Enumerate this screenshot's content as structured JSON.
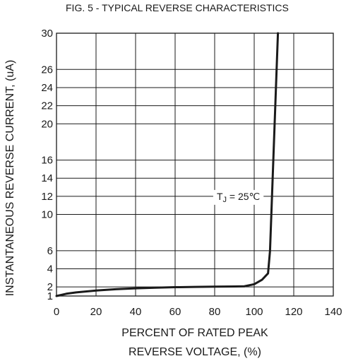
{
  "chart_data": {
    "type": "line",
    "title": "FIG. 5 - TYPICAL REVERSE CHARACTERISTICS",
    "xlabel_line1": "PERCENT OF RATED PEAK",
    "xlabel_line2": "REVERSE VOLTAGE, (%)",
    "ylabel": "INSTANTANEOUS REVERSE CURRENT, (uA)",
    "xlim": [
      0,
      140
    ],
    "ylim": [
      1,
      30
    ],
    "x_ticks": [
      "0",
      "20",
      "40",
      "60",
      "80",
      "100",
      "120",
      "140"
    ],
    "y_ticks": [
      1,
      2,
      4,
      6,
      10,
      12,
      14,
      16,
      20,
      22,
      24,
      26,
      30
    ],
    "y_tick_labels": [
      "1",
      "2",
      "4",
      "6",
      "10",
      "12",
      "14",
      "16",
      "20",
      "22",
      "24",
      "26",
      "30"
    ],
    "grid": true,
    "annotation": {
      "prefix": "T",
      "subscript": "J",
      "suffix": " = 25℃",
      "x": 92,
      "y": 12
    },
    "series": [
      {
        "x": [
          0,
          5,
          10,
          20,
          30,
          40,
          50,
          60,
          70,
          80,
          90,
          95,
          100,
          104,
          107,
          108,
          109,
          110,
          111,
          112
        ],
        "values": [
          1.0,
          1.25,
          1.4,
          1.6,
          1.75,
          1.85,
          1.92,
          1.97,
          2.0,
          2.03,
          2.05,
          2.07,
          2.3,
          2.8,
          3.5,
          6,
          12,
          18,
          24,
          30
        ]
      }
    ]
  }
}
